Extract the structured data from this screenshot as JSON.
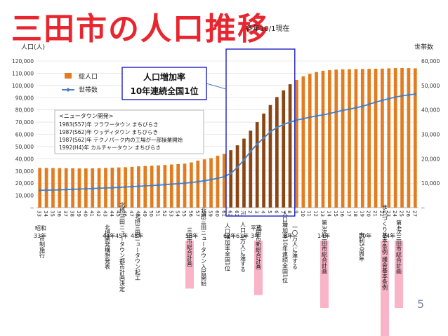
{
  "slide": {
    "title": "三田市の人口推移",
    "date_note": "各年10/1現在",
    "page_number": "5"
  },
  "colors": {
    "title_fill": "#e8262f",
    "title_outline": "#ffffff",
    "bar_normal": "#e27c1e",
    "bar_highlight": "#8b4513",
    "line": "#4a7fc0",
    "highlight_box": "#1f1fbf",
    "callout_border": "#1f1fbf",
    "callout_fill": "#ffffff",
    "pink": "#f9b4c7"
  },
  "callout": {
    "line1": "人口増加率",
    "line2": "10年連続全国1位"
  },
  "newtown_box": {
    "heading": "<ニュータウン開発>",
    "items": [
      "1983(S57)年 フラワータウン まちびらき",
      "1987(S62)年 ウッディタウン まちびらき",
      "1987(S62)年 テクノパーク内の工場が一部操業開始",
      "1992(H4)年 カルチャータウン まちびらき"
    ]
  },
  "chart_data": {
    "type": "bar+line",
    "left_axis_label": "人口(人)",
    "right_axis_label": "世帯数",
    "ylim_left": [
      0,
      120000
    ],
    "ylim_right": [
      0,
      60000
    ],
    "left_ticks": [
      "─",
      "10,000",
      "20,000",
      "30,000",
      "40,000",
      "50,000",
      "60,000",
      "70,000",
      "80,000",
      "90,000",
      "100,000",
      "110,000",
      "120,000"
    ],
    "right_ticks": [
      "─",
      "10,000",
      "20,000",
      "30,000",
      "40,000",
      "50,000",
      "60,000"
    ],
    "legend": [
      {
        "name": "総人口",
        "kind": "bar"
      },
      {
        "name": "世帯数",
        "kind": "line"
      }
    ],
    "categories": [
      "33",
      "34",
      "35",
      "36",
      "37",
      "38",
      "39",
      "40",
      "41",
      "42",
      "43",
      "44",
      "45",
      "46",
      "47",
      "48",
      "49",
      "50",
      "51",
      "52",
      "53",
      "54",
      "55",
      "56",
      "57",
      "58",
      "59",
      "60",
      "61",
      "62",
      "63",
      "元",
      "2",
      "3",
      "4",
      "5",
      "6",
      "7",
      "8",
      "9",
      "10",
      "11",
      "12",
      "13",
      "14",
      "15",
      "16",
      "17",
      "18",
      "19",
      "20",
      "21",
      "22",
      "23",
      "24",
      "25",
      "26",
      "27"
    ],
    "highlight_range": [
      29,
      38
    ],
    "series": [
      {
        "name": "総人口",
        "axis": "left",
        "values": [
          32500,
          32500,
          32400,
          32300,
          32300,
          32200,
          32100,
          32100,
          32200,
          32300,
          32500,
          32700,
          32900,
          33100,
          33400,
          33800,
          34100,
          34300,
          34600,
          34900,
          35300,
          35600,
          36000,
          37000,
          38500,
          39500,
          40500,
          42500,
          44000,
          47000,
          51000,
          56500,
          63000,
          70000,
          77000,
          84000,
          90500,
          96000,
          101000,
          104500,
          107500,
          109500,
          111000,
          112000,
          112500,
          113000,
          113200,
          113300,
          113400,
          113500,
          113600,
          113700,
          113800,
          114000,
          114200,
          114300,
          114200,
          114000
        ]
      },
      {
        "name": "世帯数",
        "axis": "right",
        "values": [
          7100,
          7150,
          7200,
          7300,
          7400,
          7500,
          7600,
          7700,
          7800,
          7950,
          8050,
          8150,
          8300,
          8450,
          8600,
          8750,
          8900,
          9050,
          9200,
          9400,
          9600,
          9800,
          10000,
          10300,
          10600,
          11000,
          11500,
          12000,
          12700,
          14000,
          16500,
          19500,
          23000,
          26000,
          28500,
          31000,
          32800,
          34000,
          35000,
          35800,
          36400,
          37000,
          37500,
          38000,
          38500,
          39200,
          39800,
          40300,
          40900,
          41500,
          42300,
          43200,
          43900,
          44600,
          45200,
          45800,
          46100,
          46500
        ]
      }
    ]
  },
  "era_labels": {
    "showa": "昭和",
    "showa_33": "33年",
    "heisei": "平成",
    "heisei_3": "3年"
  },
  "events": [
    {
      "year_label": "",
      "text": "市制施行",
      "pink": false
    },
    {
      "year_label": "44年",
      "text": "北摂開発構想発表",
      "pink": false
    },
    {
      "year_label": "45年",
      "text": "北摂三田ニュータウン都市計画決定",
      "pink": false
    },
    {
      "year_label": "48年",
      "text": "北摂三田ニュータウン起工",
      "pink": false
    },
    {
      "year_label": "56年",
      "text": "三田市総合計画",
      "pink": true
    },
    {
      "year_label": "",
      "text": "北摂三田ニュータウン入居開始",
      "pink": false
    },
    {
      "year_label": "62年",
      "text": "人口増加率全国1位",
      "pink": false
    },
    {
      "year_label": "63年",
      "text": "人口 5万人に達する",
      "pink": false
    },
    {
      "year_label": "",
      "text": "三田市新総合計画",
      "pink": true
    },
    {
      "year_label": "8年",
      "text": "人口増加率10年連続全国1位",
      "pink": false
    },
    {
      "year_label": "",
      "text": "一〇万人に達する",
      "pink": false
    },
    {
      "year_label": "14年",
      "text": "第3次三田市総合計画",
      "pink": true
    },
    {
      "year_label": "20年",
      "text": "市制50周年",
      "pink": false
    },
    {
      "year_label": "24年",
      "text": "まちづくり基本条例 議会基本条例",
      "pink": true
    },
    {
      "year_label": "",
      "text": "第4次三田市総合計画",
      "pink": true
    }
  ]
}
